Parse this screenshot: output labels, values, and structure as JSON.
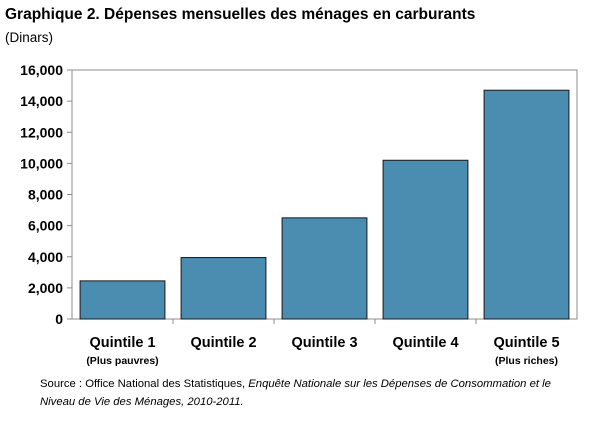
{
  "chart_data": {
    "type": "bar",
    "title": "Graphique 2. Dépenses mensuelles des ménages en carburants",
    "unit_label": "(Dinars)",
    "categories": [
      "Quintile 1",
      "Quintile 2",
      "Quintile 3",
      "Quintile 4",
      "Quintile 5"
    ],
    "category_sublabels": [
      "(Plus pauvres)",
      "",
      "",
      "",
      "(Plus riches)"
    ],
    "values": [
      2450,
      3950,
      6500,
      10200,
      14700
    ],
    "ylim": [
      0,
      16000
    ],
    "yticks": [
      0,
      2000,
      4000,
      6000,
      8000,
      10000,
      12000,
      14000,
      16000
    ],
    "ytick_labels": [
      "0",
      "2,000",
      "4,000",
      "6,000",
      "8,000",
      "10,000",
      "12,000",
      "14,000",
      "16,000"
    ],
    "xlabel": "",
    "ylabel": "",
    "grid": false,
    "bar_color": "#4a8db0",
    "bar_edge_color": "#1a1a1a"
  },
  "source": {
    "prefix": "Source : Office National des Statistiques, ",
    "italic": "Enquête Nationale sur les Dépenses de Consommation et le Niveau de Vie des Ménages, 2010-2011."
  }
}
